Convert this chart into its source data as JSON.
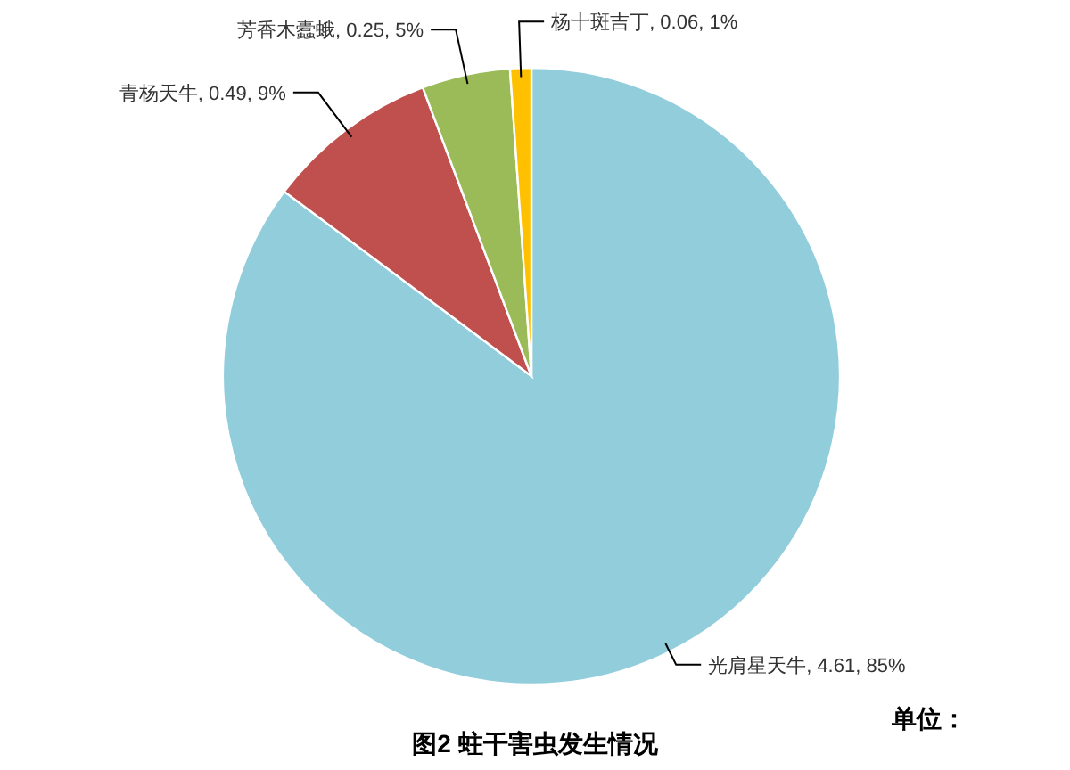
{
  "chart_data": {
    "type": "pie",
    "title": "图2 蛀干害虫发生情况",
    "categories": [
      "光肩星天牛",
      "青杨天牛",
      "芳香木蠹蛾",
      "杨十斑吉丁"
    ],
    "values": [
      4.61,
      0.49,
      0.25,
      0.06
    ],
    "value_labels": [
      "4.61, 85%",
      "0.49, 9%",
      "0.25, 5%",
      "0.06, 1%"
    ],
    "colors": [
      "#92cddc",
      "#c0504d",
      "#9bbb59",
      "#ffc000"
    ],
    "annotations": [
      "单位："
    ]
  }
}
